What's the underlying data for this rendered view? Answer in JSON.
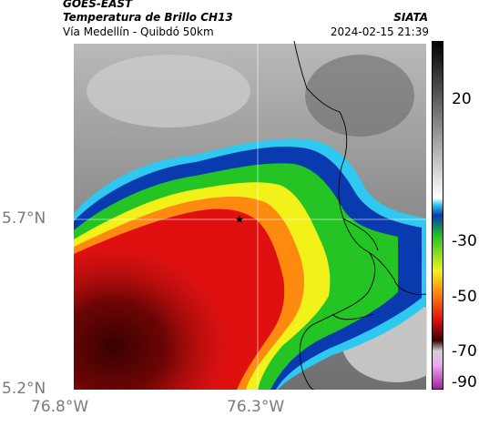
{
  "header": {
    "satellite": "GOES-EAST",
    "product": "Temperatura de Brillo CH13",
    "brand": "SIATA",
    "location": "Vía Medellín - Quibdó 50km",
    "datetime": "2024-02-15 21:39"
  },
  "axes": {
    "y_ticks": [
      "5.7°N",
      "5.2°N"
    ],
    "x_ticks": [
      "76.8°W",
      "76.3°W"
    ]
  },
  "colorbar": {
    "ticks": [
      "20",
      "-30",
      "-50",
      "-70",
      "-90"
    ]
  },
  "map": {
    "marker": "star-icon",
    "colors": {
      "cold_core": "#3a0000",
      "red": "#e01010",
      "orange": "#ff8a10",
      "yellow": "#f2f21a",
      "green": "#23c423",
      "blue": "#0a3ab0",
      "cyan": "#2ec8f0",
      "gray": "#9a9a9a"
    }
  }
}
